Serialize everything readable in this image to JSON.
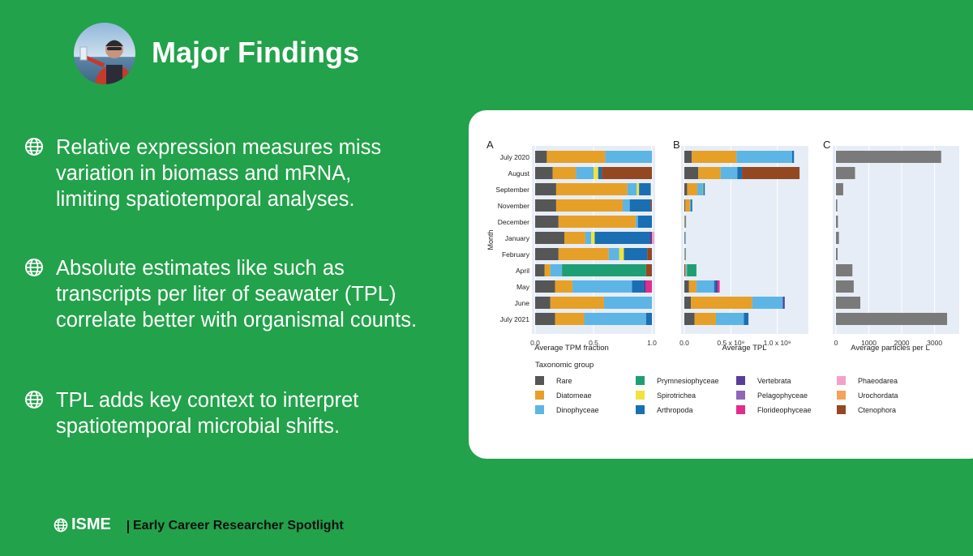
{
  "slide": {
    "title": "Major Findings",
    "bullets": [
      "Relative expression measures miss\nvariation in biomass and mRNA,\nlimiting spatiotemporal analyses.",
      "Absolute estimates like such as\ntranscripts per liter of seawater (TPL)\ncorrelate better with organismal counts.",
      "TPL adds key context to interpret\nspatiotemporal microbial shifts."
    ]
  },
  "footer": {
    "logo_text": "ISME",
    "tagline": "Early Career Researcher Spotlight"
  },
  "colors": {
    "background": "#22a24a",
    "Rare": "#565656",
    "Diatomeae": "#e6a027",
    "Dinophyceae": "#5db5e5",
    "Prymnesiophyceae": "#1e9e74",
    "Spirotrichea": "#efe43a",
    "Arthropoda": "#1a6fb2",
    "Vertebrata": "#5a3d97",
    "Pelagophyceae": "#8f66b8",
    "Florideophyceae": "#e32d8c",
    "Phaeodarea": "#f4a1c8",
    "Urochordata": "#f3a35b",
    "Ctenophora": "#944822"
  },
  "chart_data": [
    {
      "type": "bar",
      "panel": "A",
      "orientation": "horizontal",
      "stacked": true,
      "xlabel": "Average TPM fraction",
      "ylabel": "Month",
      "xlim": [
        0,
        1
      ],
      "xticks": [
        "0.0",
        "0.5",
        "1.0"
      ],
      "categories": [
        "July 2020",
        "August",
        "September",
        "November",
        "December",
        "January",
        "February",
        "April",
        "May",
        "June",
        "July 2021"
      ],
      "series": [
        {
          "name": "Rare",
          "values": [
            0.1,
            0.15,
            0.18,
            0.18,
            0.2,
            0.25,
            0.2,
            0.08,
            0.17,
            0.13,
            0.17
          ]
        },
        {
          "name": "Diatomeae",
          "values": [
            0.5,
            0.2,
            0.61,
            0.57,
            0.66,
            0.18,
            0.43,
            0.05,
            0.15,
            0.46,
            0.25
          ]
        },
        {
          "name": "Dinophyceae",
          "values": [
            0.4,
            0.15,
            0.08,
            0.06,
            0.02,
            0.05,
            0.09,
            0.1,
            0.51,
            0.41,
            0.53
          ]
        },
        {
          "name": "Prymnesiophyceae",
          "values": [
            0,
            0,
            0,
            0,
            0,
            0,
            0,
            0.72,
            0,
            0,
            0
          ]
        },
        {
          "name": "Spirotrichea",
          "values": [
            0,
            0.04,
            0.02,
            0,
            0,
            0.03,
            0.04,
            0,
            0,
            0,
            0
          ]
        },
        {
          "name": "Arthropoda",
          "values": [
            0,
            0.03,
            0.1,
            0.18,
            0.12,
            0.47,
            0.2,
            0,
            0.1,
            0,
            0.05
          ]
        },
        {
          "name": "Vertebrata",
          "values": [
            0,
            0,
            0,
            0,
            0,
            0.02,
            0,
            0,
            0.02,
            0,
            0
          ]
        },
        {
          "name": "Pelagophyceae",
          "values": [
            0,
            0,
            0,
            0,
            0,
            0,
            0,
            0,
            0,
            0,
            0
          ]
        },
        {
          "name": "Florideophyceae",
          "values": [
            0,
            0,
            0,
            0,
            0,
            0,
            0,
            0,
            0.05,
            0,
            0
          ]
        },
        {
          "name": "Phaeodarea",
          "values": [
            0,
            0,
            0,
            0,
            0,
            0.02,
            0,
            0,
            0,
            0,
            0
          ]
        },
        {
          "name": "Urochordata",
          "values": [
            0,
            0,
            0,
            0,
            0,
            0,
            0,
            0,
            0,
            0,
            0
          ]
        },
        {
          "name": "Ctenophora",
          "values": [
            0,
            0.43,
            0,
            0.01,
            0,
            0,
            0.04,
            0.05,
            0,
            0,
            0
          ]
        }
      ]
    },
    {
      "type": "bar",
      "panel": "B",
      "orientation": "horizontal",
      "stacked": true,
      "xlabel": "Average TPL",
      "xlim": [
        0,
        1300000000
      ],
      "xticks": [
        "0.0",
        "0.5 x 10^9",
        "1.0 x 10^9"
      ],
      "categories": [
        "July 2020",
        "August",
        "September",
        "November",
        "December",
        "January",
        "February",
        "April",
        "May",
        "June",
        "July 2021"
      ],
      "series": [
        {
          "name": "Rare",
          "values": [
            80000000,
            150000000,
            30000000,
            10000000,
            3000000,
            3000000,
            2000000,
            10000000,
            50000000,
            70000000,
            110000000
          ]
        },
        {
          "name": "Diatomeae",
          "values": [
            480000000,
            240000000,
            110000000,
            50000000,
            8000000,
            2000000,
            5000000,
            10000000,
            80000000,
            660000000,
            230000000
          ]
        },
        {
          "name": "Dinophyceae",
          "values": [
            600000000,
            180000000,
            60000000,
            10000000,
            2000000,
            2000000,
            2000000,
            10000000,
            190000000,
            330000000,
            300000000
          ]
        },
        {
          "name": "Prymnesiophyceae",
          "values": [
            0,
            0,
            0,
            0,
            0,
            0,
            0,
            100000000,
            0,
            0,
            0
          ]
        },
        {
          "name": "Spirotrichea",
          "values": [
            0,
            0,
            5000000,
            0,
            0,
            0,
            0,
            0,
            0,
            0,
            0
          ]
        },
        {
          "name": "Arthropoda",
          "values": [
            20000000,
            50000000,
            15000000,
            15000000,
            2000000,
            2000000,
            2000000,
            0,
            20000000,
            0,
            50000000
          ]
        },
        {
          "name": "Vertebrata",
          "values": [
            0,
            0,
            0,
            0,
            0,
            0,
            0,
            0,
            20000000,
            20000000,
            0
          ]
        },
        {
          "name": "Pelagophyceae",
          "values": [
            0,
            0,
            0,
            0,
            0,
            0,
            0,
            0,
            0,
            0,
            0
          ]
        },
        {
          "name": "Florideophyceae",
          "values": [
            0,
            0,
            0,
            0,
            0,
            0,
            0,
            0,
            20000000,
            0,
            0
          ]
        },
        {
          "name": "Phaeodarea",
          "values": [
            0,
            0,
            0,
            0,
            0,
            0,
            0,
            0,
            0,
            0,
            0
          ]
        },
        {
          "name": "Urochordata",
          "values": [
            0,
            0,
            0,
            0,
            0,
            0,
            0,
            0,
            0,
            0,
            0
          ]
        },
        {
          "name": "Ctenophora",
          "values": [
            0,
            620000000,
            0,
            0,
            0,
            0,
            0,
            0,
            0,
            0,
            0
          ]
        }
      ]
    },
    {
      "type": "bar",
      "panel": "C",
      "orientation": "horizontal",
      "xlabel": "Average particles per L",
      "xlim": [
        0,
        3650
      ],
      "xticks": [
        "0",
        "1000",
        "2000",
        "3000"
      ],
      "categories": [
        "July 2020",
        "August",
        "September",
        "November",
        "December",
        "January",
        "February",
        "April",
        "May",
        "June",
        "July 2021"
      ],
      "values": [
        3200,
        580,
        220,
        40,
        60,
        90,
        50,
        500,
        540,
        740,
        3380
      ]
    }
  ],
  "legend": {
    "title": "Taxonomic group",
    "items": [
      "Rare",
      "Prymnesiophyceae",
      "Vertebrata",
      "Phaeodarea",
      "Diatomeae",
      "Spirotrichea",
      "Pelagophyceae",
      "Urochordata",
      "Dinophyceae",
      "Arthropoda",
      "Florideophyceae",
      "Ctenophora"
    ]
  }
}
